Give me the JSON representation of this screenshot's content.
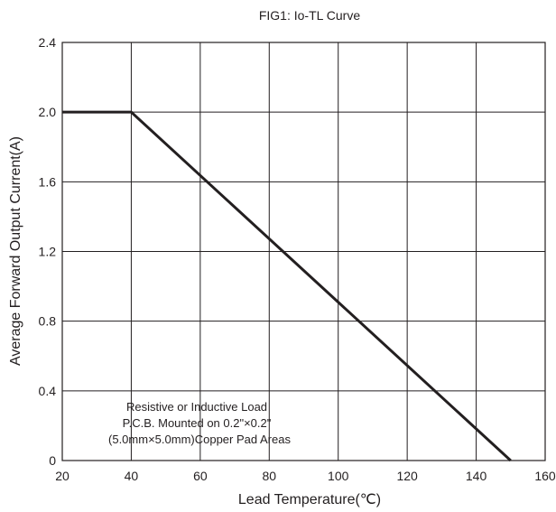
{
  "chart_data": {
    "type": "line",
    "title": "FIG1:  Io-TL Curve",
    "xlabel": "Lead Temperature(℃)",
    "ylabel": "Average Forward Output Current(A)",
    "xlim": [
      20,
      160
    ],
    "ylim": [
      0,
      2.4
    ],
    "x_ticks": [
      "20",
      "40",
      "60",
      "80",
      "100",
      "120",
      "140",
      "160"
    ],
    "y_ticks": [
      "0",
      "0.4",
      "0.8",
      "1.2",
      "1.6",
      "2.0",
      "2.4"
    ],
    "grid": true,
    "series": [
      {
        "x": [
          20,
          40,
          150
        ],
        "y": [
          2.0,
          2.0,
          0
        ]
      }
    ],
    "annotations": [
      "Resistive or Inductive Load",
      "P.C.B. Mounted on 0.2\"×0.2\"",
      "(5.0mm×5.0mm)Copper Pad Areas"
    ],
    "colors": {
      "line": "#231f20",
      "grid": "#231f20"
    }
  }
}
